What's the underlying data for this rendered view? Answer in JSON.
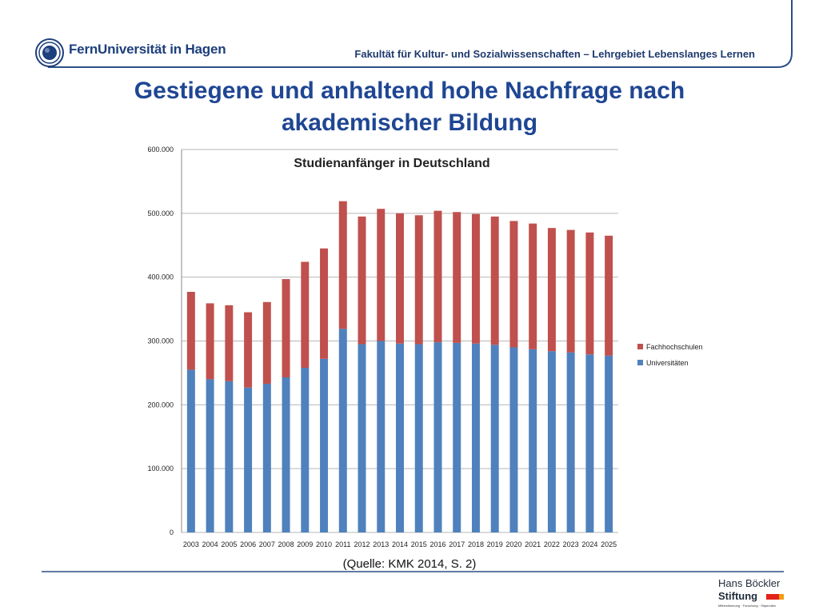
{
  "header": {
    "logo_text": "FernUniversität in Hagen",
    "faculty": "Fakultät für Kultur- und Sozialwissenschaften – Lehrgebiet Lebenslanges Lernen"
  },
  "slide": {
    "title_line1": "Gestiegene und anhaltend hohe Nachfrage nach",
    "title_line2": "akademischer Bildung",
    "source": "(Quelle: KMK 2014, S. 2)"
  },
  "footer": {
    "sponsor_line1": "Hans Böckler",
    "sponsor_line2": "Stiftung",
    "sponsor_tagline": "Mitbestimmung · Forschung · Stipendien"
  },
  "colors": {
    "universitaeten": "#4f81bd",
    "fachhochschulen": "#c0504d",
    "title": "#1f4693",
    "frame": "#2c4f8a"
  },
  "chart_data": {
    "type": "bar",
    "stacked": true,
    "title": "Studienanfänger in Deutschland",
    "categories": [
      "2003",
      "2004",
      "2005",
      "2006",
      "2007",
      "2008",
      "2009",
      "2010",
      "2011",
      "2012",
      "2013",
      "2014",
      "2015",
      "2016",
      "2017",
      "2018",
      "2019",
      "2020",
      "2021",
      "2022",
      "2023",
      "2024",
      "2025"
    ],
    "series": [
      {
        "name": "Universitäten",
        "values": [
          255000,
          240000,
          237000,
          227000,
          233000,
          243000,
          258000,
          272000,
          319000,
          295000,
          300000,
          296000,
          295000,
          298000,
          297000,
          296000,
          294000,
          290000,
          287000,
          284000,
          282000,
          279000,
          277000
        ]
      },
      {
        "name": "Fachhochschulen",
        "values": [
          122000,
          119000,
          119000,
          118000,
          128000,
          154000,
          166000,
          173000,
          200000,
          200000,
          207000,
          204000,
          202000,
          206000,
          205000,
          203000,
          201000,
          198000,
          197000,
          193000,
          192000,
          191000,
          188000
        ]
      }
    ],
    "ylim": [
      0,
      600000
    ],
    "yticks": [
      "0",
      "100.000",
      "200.000",
      "300.000",
      "400.000",
      "500.000",
      "600.000"
    ],
    "grid": true,
    "legend": "right",
    "legend_order": [
      "Fachhochschulen",
      "Universitäten"
    ]
  }
}
